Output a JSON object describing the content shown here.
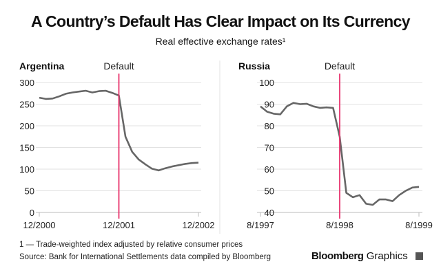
{
  "title": "A Country’s Default Has Clear Impact on Its Currency",
  "subtitle": "Real effective exchange rates¹",
  "footnote": "1 — Trade-weighted index adjusted by relative consumer prices",
  "source": "Source: Bank for International Settlements data compiled by Bloomberg",
  "brand": {
    "name": "Bloomberg",
    "suffix": "Graphics"
  },
  "colors": {
    "line": "#666666",
    "default": "#e8336d",
    "grid": "#e2e2e2"
  },
  "chart_data": [
    {
      "type": "line",
      "title": "Argentina",
      "annotation": "Default",
      "annotation_x": 12,
      "ylim": [
        0,
        300
      ],
      "yticks": [
        0,
        50,
        100,
        150,
        200,
        250,
        300
      ],
      "xticks": [
        {
          "x": 0,
          "label": "12/2000"
        },
        {
          "x": 12,
          "label": "12/2001"
        },
        {
          "x": 24,
          "label": "12/2002"
        }
      ],
      "x": [
        0,
        1,
        2,
        3,
        4,
        5,
        6,
        7,
        8,
        9,
        10,
        11,
        12,
        13,
        14,
        15,
        16,
        17,
        18,
        19,
        20,
        21,
        22,
        23,
        24
      ],
      "values": [
        265,
        262,
        263,
        268,
        274,
        277,
        279,
        281,
        277,
        280,
        281,
        276,
        270,
        175,
        140,
        122,
        111,
        101,
        97,
        102,
        106,
        109,
        112,
        114,
        115
      ]
    },
    {
      "type": "line",
      "title": "Russia",
      "annotation": "Default",
      "annotation_x": 12,
      "ylim": [
        40,
        100
      ],
      "yticks": [
        40,
        50,
        60,
        70,
        80,
        90,
        100
      ],
      "xticks": [
        {
          "x": 0,
          "label": "8/1997"
        },
        {
          "x": 12,
          "label": "8/1998"
        },
        {
          "x": 24,
          "label": "8/1999"
        }
      ],
      "x": [
        0,
        1,
        2,
        3,
        4,
        5,
        6,
        7,
        8,
        9,
        10,
        11,
        12,
        13,
        14,
        15,
        16,
        17,
        18,
        19,
        20,
        21,
        22,
        23,
        24
      ],
      "values": [
        89,
        86.5,
        85.6,
        85.3,
        89,
        90.6,
        90,
        90.2,
        89,
        88.3,
        88.5,
        88.3,
        75,
        49,
        47,
        48,
        44,
        43.5,
        46,
        46,
        45.2,
        48,
        50,
        51.5,
        51.8
      ]
    }
  ]
}
